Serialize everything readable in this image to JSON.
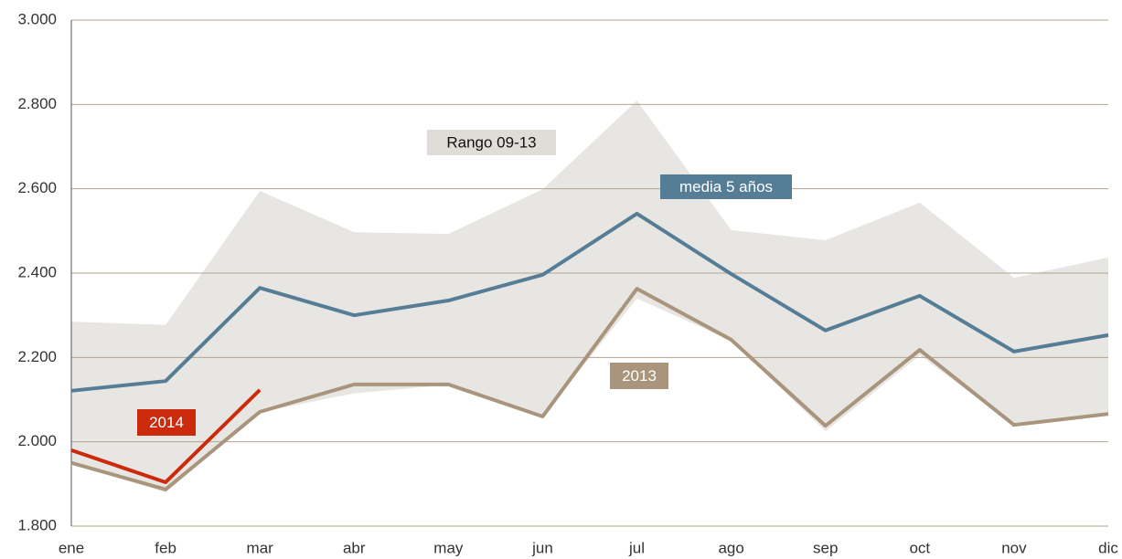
{
  "chart_data": {
    "type": "line",
    "categories": [
      "ene",
      "feb",
      "mar",
      "abr",
      "may",
      "jun",
      "jul",
      "ago",
      "sep",
      "oct",
      "nov",
      "dic"
    ],
    "band": {
      "name": "Rango 09-13",
      "color": "#e8e6e3",
      "upper": [
        2285,
        2277,
        2595,
        2497,
        2493,
        2599,
        2809,
        2502,
        2478,
        2567,
        2389,
        2437
      ],
      "lower": [
        1950,
        1880,
        2070,
        2115,
        2135,
        2060,
        2340,
        2240,
        2025,
        2205,
        2040,
        2065
      ]
    },
    "series": [
      {
        "name": "media 5 años",
        "color": "#567d96",
        "values": [
          2121,
          2144,
          2365,
          2300,
          2335,
          2396,
          2541,
          2398,
          2264,
          2346,
          2214,
          2253
        ]
      },
      {
        "name": "2013",
        "color": "#a8957b",
        "values": [
          1950,
          1887,
          2071,
          2136,
          2136,
          2060,
          2363,
          2242,
          2038,
          2218,
          2040,
          2066
        ]
      },
      {
        "name": "2014",
        "color": "#cc2a0c",
        "values": [
          1980,
          1904,
          2123,
          null,
          null,
          null,
          null,
          null,
          null,
          null,
          null,
          null
        ]
      }
    ],
    "ylim": [
      1800,
      3000
    ],
    "yticks": [
      {
        "value": 1800,
        "label": "1.800"
      },
      {
        "value": 2000,
        "label": "2.000"
      },
      {
        "value": 2200,
        "label": "2.200"
      },
      {
        "value": 2400,
        "label": "2.400"
      },
      {
        "value": 2600,
        "label": "2.600"
      },
      {
        "value": 2800,
        "label": "2.800"
      },
      {
        "value": 3000,
        "label": "3.000"
      }
    ],
    "grid": true
  }
}
